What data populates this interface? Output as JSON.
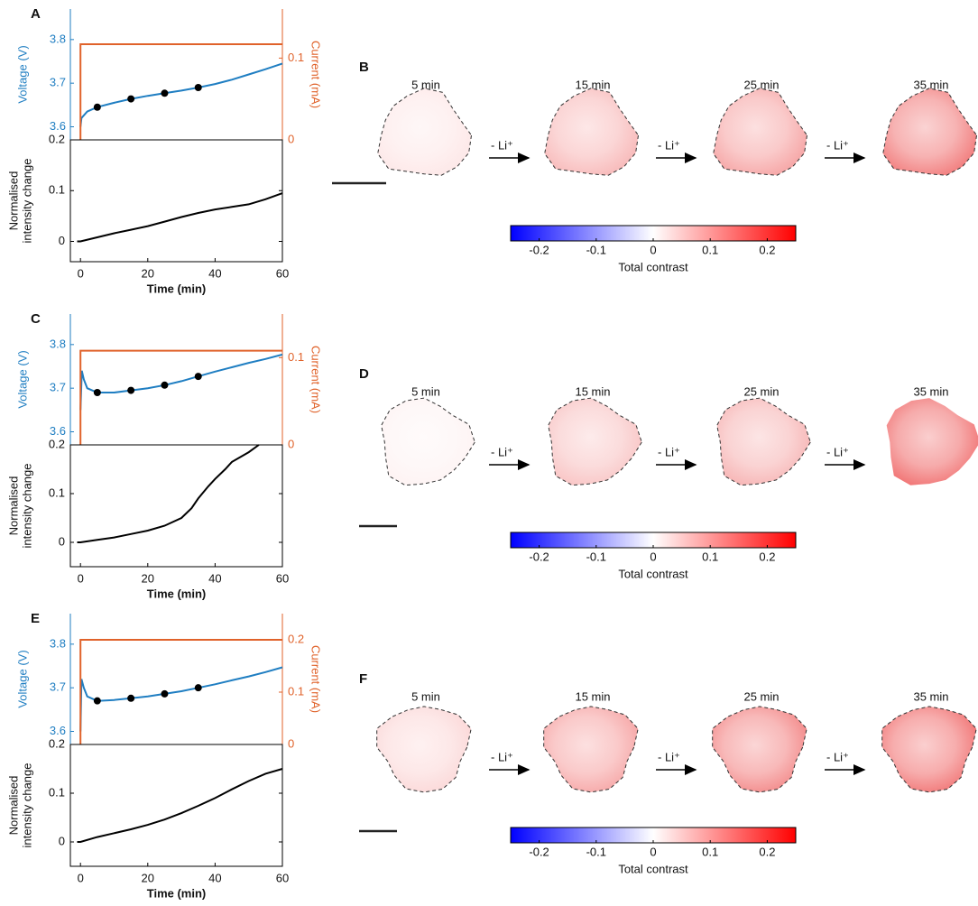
{
  "chart_data": [
    {
      "type": "line",
      "panel_label": "A",
      "ylabel": "Voltage (V)",
      "y2label": "Current (mA)",
      "xlim": [
        -3,
        60
      ],
      "ylim": [
        3.57,
        3.87
      ],
      "yticks": [
        3.6,
        3.7,
        3.8
      ],
      "y2lim": [
        0,
        0.16
      ],
      "y2ticks": [
        0,
        0.1
      ],
      "series": [
        {
          "color": "#1f7ec2",
          "x": [
            0,
            0.3,
            2,
            5,
            10,
            15,
            20,
            25,
            30,
            35,
            40,
            45,
            50,
            55,
            60
          ],
          "values": [
            3.6,
            3.62,
            3.635,
            3.645,
            3.655,
            3.664,
            3.671,
            3.677,
            3.683,
            3.69,
            3.698,
            3.708,
            3.72,
            3.732,
            3.745
          ]
        },
        {
          "color": "#e0622a",
          "axis": "y2",
          "x": [
            0,
            0,
            60
          ],
          "values": [
            0,
            0.117,
            0.117
          ]
        },
        {
          "color": "#000000",
          "marker": "dot",
          "x": [
            5,
            15,
            25,
            35
          ],
          "values": [
            3.645,
            3.664,
            3.677,
            3.69
          ]
        }
      ]
    },
    {
      "type": "line",
      "ylabel_lines": [
        "Normalised",
        "intensity change"
      ],
      "xlabel": "Time (min)",
      "xlim": [
        -3,
        60
      ],
      "xticks": [
        0,
        20,
        40,
        60
      ],
      "ylim": [
        -0.04,
        0.2
      ],
      "yticks": [
        0,
        0.1,
        0.2
      ],
      "series": [
        {
          "color": "#000000",
          "x": [
            -1,
            0,
            5,
            10,
            15,
            20,
            25,
            30,
            35,
            40,
            45,
            50,
            55,
            60
          ],
          "values": [
            0,
            0,
            0.008,
            0.016,
            0.023,
            0.03,
            0.039,
            0.048,
            0.056,
            0.063,
            0.068,
            0.073,
            0.083,
            0.095
          ]
        }
      ]
    },
    {
      "type": "colorbar",
      "xlabel": "Total contrast",
      "xlim": [
        -0.25,
        0.25
      ],
      "xticks": [
        -0.2,
        -0.1,
        0,
        0.1,
        0.2
      ],
      "colors": [
        "#0000ff",
        "#ffffff",
        "#ff0000"
      ]
    },
    {
      "type": "line",
      "panel_label": "C",
      "ylabel": "Voltage (V)",
      "y2label": "Current (mA)",
      "xlim": [
        -3,
        60
      ],
      "ylim": [
        3.57,
        3.87
      ],
      "yticks": [
        3.6,
        3.7,
        3.8
      ],
      "y2lim": [
        0,
        0.15
      ],
      "y2ticks": [
        0,
        0.1
      ],
      "series": [
        {
          "color": "#1f7ec2",
          "x": [
            0,
            0.4,
            1,
            2,
            5,
            10,
            15,
            20,
            25,
            30,
            35,
            40,
            45,
            50,
            55,
            60
          ],
          "values": [
            3.65,
            3.74,
            3.72,
            3.7,
            3.69,
            3.69,
            3.695,
            3.7,
            3.707,
            3.716,
            3.727,
            3.738,
            3.748,
            3.758,
            3.767,
            3.777
          ]
        },
        {
          "color": "#e0622a",
          "axis": "y2",
          "x": [
            0,
            0,
            60
          ],
          "values": [
            0,
            0.108,
            0.108
          ]
        },
        {
          "color": "#000000",
          "marker": "dot",
          "x": [
            5,
            15,
            25,
            35
          ],
          "values": [
            3.69,
            3.695,
            3.707,
            3.727
          ]
        }
      ]
    },
    {
      "type": "line",
      "ylabel_lines": [
        "Normalised",
        "intensity change"
      ],
      "xlabel": "Time (min)",
      "xlim": [
        -3,
        60
      ],
      "xticks": [
        0,
        20,
        40,
        60
      ],
      "ylim": [
        -0.05,
        0.2
      ],
      "yticks": [
        0,
        0.1,
        0.2
      ],
      "series": [
        {
          "color": "#000000",
          "x": [
            -1,
            0,
            5,
            10,
            15,
            20,
            25,
            30,
            33,
            35,
            38,
            40,
            43,
            45,
            50,
            53
          ],
          "values": [
            0,
            0,
            0.005,
            0.01,
            0.017,
            0.024,
            0.034,
            0.05,
            0.07,
            0.09,
            0.115,
            0.13,
            0.15,
            0.165,
            0.185,
            0.2
          ]
        }
      ]
    },
    {
      "type": "colorbar",
      "xlabel": "Total contrast",
      "xlim": [
        -0.25,
        0.25
      ],
      "xticks": [
        -0.2,
        -0.1,
        0,
        0.1,
        0.2
      ],
      "colors": [
        "#0000ff",
        "#ffffff",
        "#ff0000"
      ]
    },
    {
      "type": "line",
      "panel_label": "E",
      "ylabel": "Voltage (V)",
      "y2label": "Current (mA)",
      "xlim": [
        -3,
        60
      ],
      "ylim": [
        3.57,
        3.87
      ],
      "yticks": [
        3.6,
        3.7,
        3.8
      ],
      "y2lim": [
        0,
        0.25
      ],
      "y2ticks": [
        0,
        0.1,
        0.2
      ],
      "series": [
        {
          "color": "#1f7ec2",
          "x": [
            0,
            0.3,
            1,
            2,
            5,
            10,
            15,
            20,
            25,
            30,
            35,
            40,
            45,
            50,
            55,
            60
          ],
          "values": [
            3.6,
            3.72,
            3.7,
            3.68,
            3.67,
            3.672,
            3.676,
            3.68,
            3.686,
            3.692,
            3.7,
            3.708,
            3.717,
            3.726,
            3.736,
            3.747
          ]
        },
        {
          "color": "#e0622a",
          "axis": "y2",
          "x": [
            0,
            0,
            60
          ],
          "values": [
            0,
            0.2,
            0.2
          ]
        },
        {
          "color": "#000000",
          "marker": "dot",
          "x": [
            5,
            15,
            25,
            35
          ],
          "values": [
            3.67,
            3.676,
            3.686,
            3.7
          ]
        }
      ]
    },
    {
      "type": "line",
      "ylabel_lines": [
        "Normalised",
        "intensity change"
      ],
      "xlabel": "Time (min)",
      "xlim": [
        -3,
        60
      ],
      "xticks": [
        0,
        20,
        40,
        60
      ],
      "ylim": [
        -0.05,
        0.2
      ],
      "yticks": [
        0,
        0.1,
        0.2
      ],
      "series": [
        {
          "color": "#000000",
          "x": [
            -1,
            0,
            5,
            10,
            15,
            20,
            25,
            30,
            35,
            40,
            45,
            50,
            55,
            60
          ],
          "values": [
            0,
            0,
            0.01,
            0.018,
            0.026,
            0.035,
            0.046,
            0.059,
            0.074,
            0.09,
            0.108,
            0.125,
            0.14,
            0.15
          ]
        }
      ]
    },
    {
      "type": "colorbar",
      "xlabel": "Total contrast",
      "xlim": [
        -0.25,
        0.25
      ],
      "xticks": [
        -0.2,
        -0.1,
        0,
        0.1,
        0.2
      ],
      "colors": [
        "#0000ff",
        "#ffffff",
        "#ff0000"
      ]
    }
  ],
  "image_panels": [
    {
      "label": "B",
      "times": [
        "5 min",
        "15 min",
        "25 min",
        "35 min"
      ],
      "arrow_labels": [
        "- Li⁺",
        "- Li⁺",
        "- Li⁺"
      ]
    },
    {
      "label": "D",
      "times": [
        "5 min",
        "15 min",
        "25 min",
        "35 min"
      ],
      "arrow_labels": [
        "- Li⁺",
        "- Li⁺",
        "- Li⁺"
      ]
    },
    {
      "label": "F",
      "times": [
        "5 min",
        "15 min",
        "25 min",
        "35 min"
      ],
      "arrow_labels": [
        "- Li⁺",
        "- Li⁺",
        "- Li⁺"
      ]
    }
  ]
}
